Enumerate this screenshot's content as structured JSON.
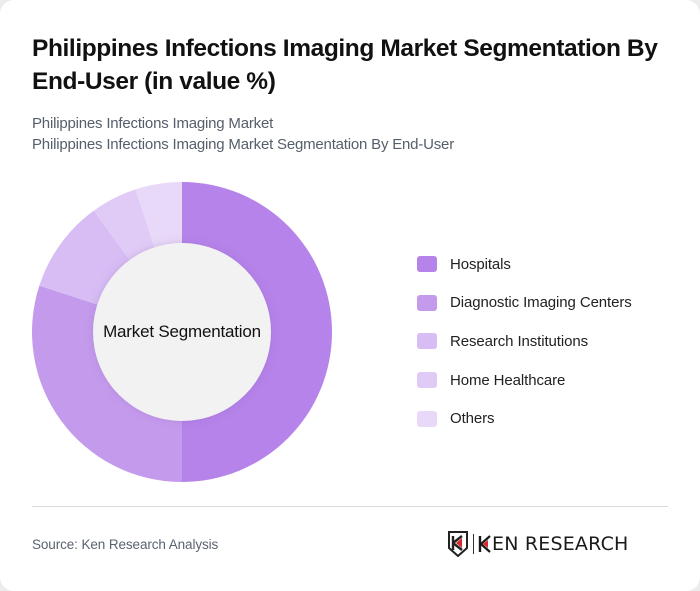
{
  "header": {
    "title": "Philippines Infections Imaging Market Segmentation By End-User (in value %)",
    "subtitle_line1": "Philippines Infections Imaging Market",
    "subtitle_line2": "Philippines Infections Imaging Market Segmentation By End-User"
  },
  "chart": {
    "center_label": "Market Segmentation"
  },
  "legend": {
    "items": [
      {
        "label": "Hospitals",
        "color": "#b583e9"
      },
      {
        "label": "Diagnostic Imaging Centers",
        "color": "#c49bec"
      },
      {
        "label": "Research Institutions",
        "color": "#d7bdf4"
      },
      {
        "label": "Home Healthcare",
        "color": "#e0cbf6"
      },
      {
        "label": "Others",
        "color": "#e8d9f8"
      }
    ]
  },
  "footer": {
    "source": "Source: Ken Research Analysis",
    "logo_text": "KEN RESEARCH"
  },
  "chart_data": {
    "type": "pie",
    "subtype": "donut",
    "title": "Philippines Infections Imaging Market Segmentation By End-User (in value %)",
    "subtitle": "Philippines Infections Imaging Market Segmentation By End-User",
    "center_label": "Market Segmentation",
    "categories": [
      "Hospitals",
      "Diagnostic Imaging Centers",
      "Research Institutions",
      "Home Healthcare",
      "Others"
    ],
    "values": [
      50,
      30,
      10,
      5,
      5
    ],
    "colors": [
      "#b583e9",
      "#c49bec",
      "#d7bdf4",
      "#e0cbf6",
      "#e8d9f8"
    ],
    "unit": "%",
    "start_angle": "12 o'clock, clockwise",
    "legend_position": "right",
    "source": "Source: Ken Research Analysis"
  }
}
